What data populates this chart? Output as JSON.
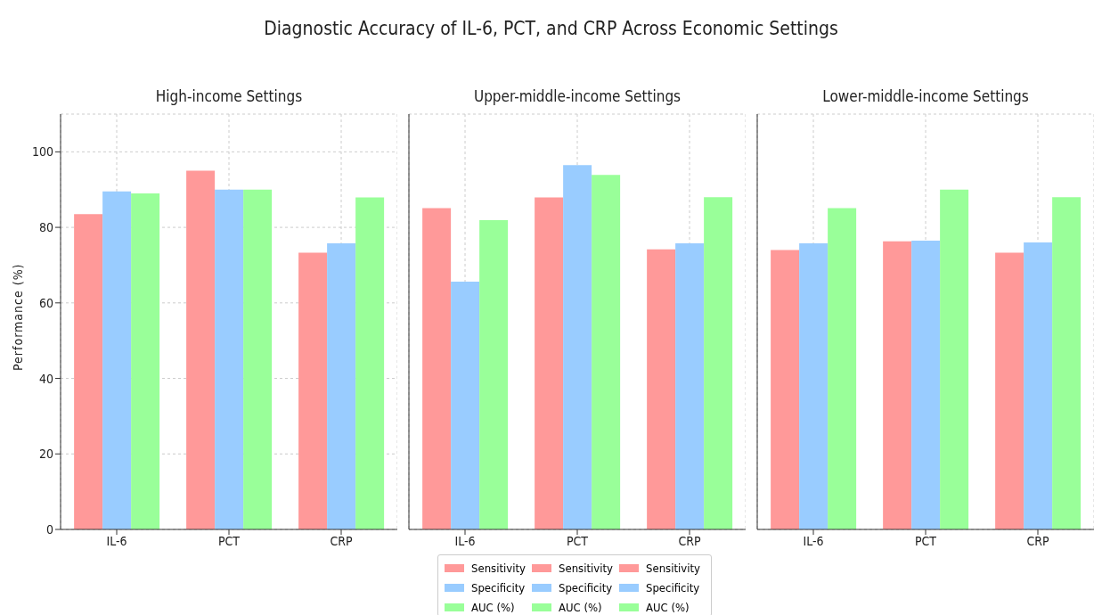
{
  "chart_data": [
    {
      "type": "bar",
      "title": "High-income Settings",
      "annotations": [
        "Diagnostic Accuracy of IL-6, PCT, and CRP Across Economic Settings"
      ],
      "ylabel": "Performance (%)",
      "categories": [
        "IL-6",
        "PCT",
        "CRP"
      ],
      "series": [
        {
          "name": "Sensitivity",
          "color": "#ff9999",
          "values": [
            83.5,
            95,
            73.3
          ]
        },
        {
          "name": "Specificity",
          "color": "#99ccff",
          "values": [
            89.5,
            90,
            75.8
          ]
        },
        {
          "name": "AUC (%)",
          "color": "#99ff99",
          "values": [
            89,
            90,
            87.9
          ]
        }
      ],
      "ylim": [
        0,
        110
      ],
      "yticks": [
        0,
        20,
        40,
        60,
        80,
        100
      ],
      "grid": true,
      "legend": "bottom"
    },
    {
      "type": "bar",
      "title": "Upper-middle-income Settings",
      "categories": [
        "IL-6",
        "PCT",
        "CRP"
      ],
      "series": [
        {
          "name": "Sensitivity",
          "color": "#ff9999",
          "values": [
            85.1,
            87.9,
            74.2
          ]
        },
        {
          "name": "Specificity",
          "color": "#99ccff",
          "values": [
            65.6,
            96.5,
            75.8
          ]
        },
        {
          "name": "AUC (%)",
          "color": "#99ff99",
          "values": [
            81.9,
            93.9,
            88
          ]
        }
      ],
      "ylim": [
        0,
        110
      ],
      "yticks": [
        0,
        20,
        40,
        60,
        80,
        100
      ],
      "grid": true,
      "legend": "bottom",
      "tick_labels": "x"
    },
    {
      "type": "bar",
      "title": "Lower-middle-income Settings",
      "categories": [
        "IL-6",
        "PCT",
        "CRP"
      ],
      "series": [
        {
          "name": "Sensitivity",
          "color": "#ff9999",
          "values": [
            74,
            76.3,
            73.3
          ]
        },
        {
          "name": "Specificity",
          "color": "#99ccff",
          "values": [
            75.8,
            76.5,
            76
          ]
        },
        {
          "name": "AUC (%)",
          "color": "#99ff99",
          "values": [
            85.1,
            90,
            88
          ]
        }
      ],
      "ylim": [
        0,
        110
      ],
      "yticks": [
        0,
        20,
        40,
        60,
        80,
        100
      ],
      "grid": true,
      "legend": "bottom",
      "tick_labels": "x"
    }
  ]
}
